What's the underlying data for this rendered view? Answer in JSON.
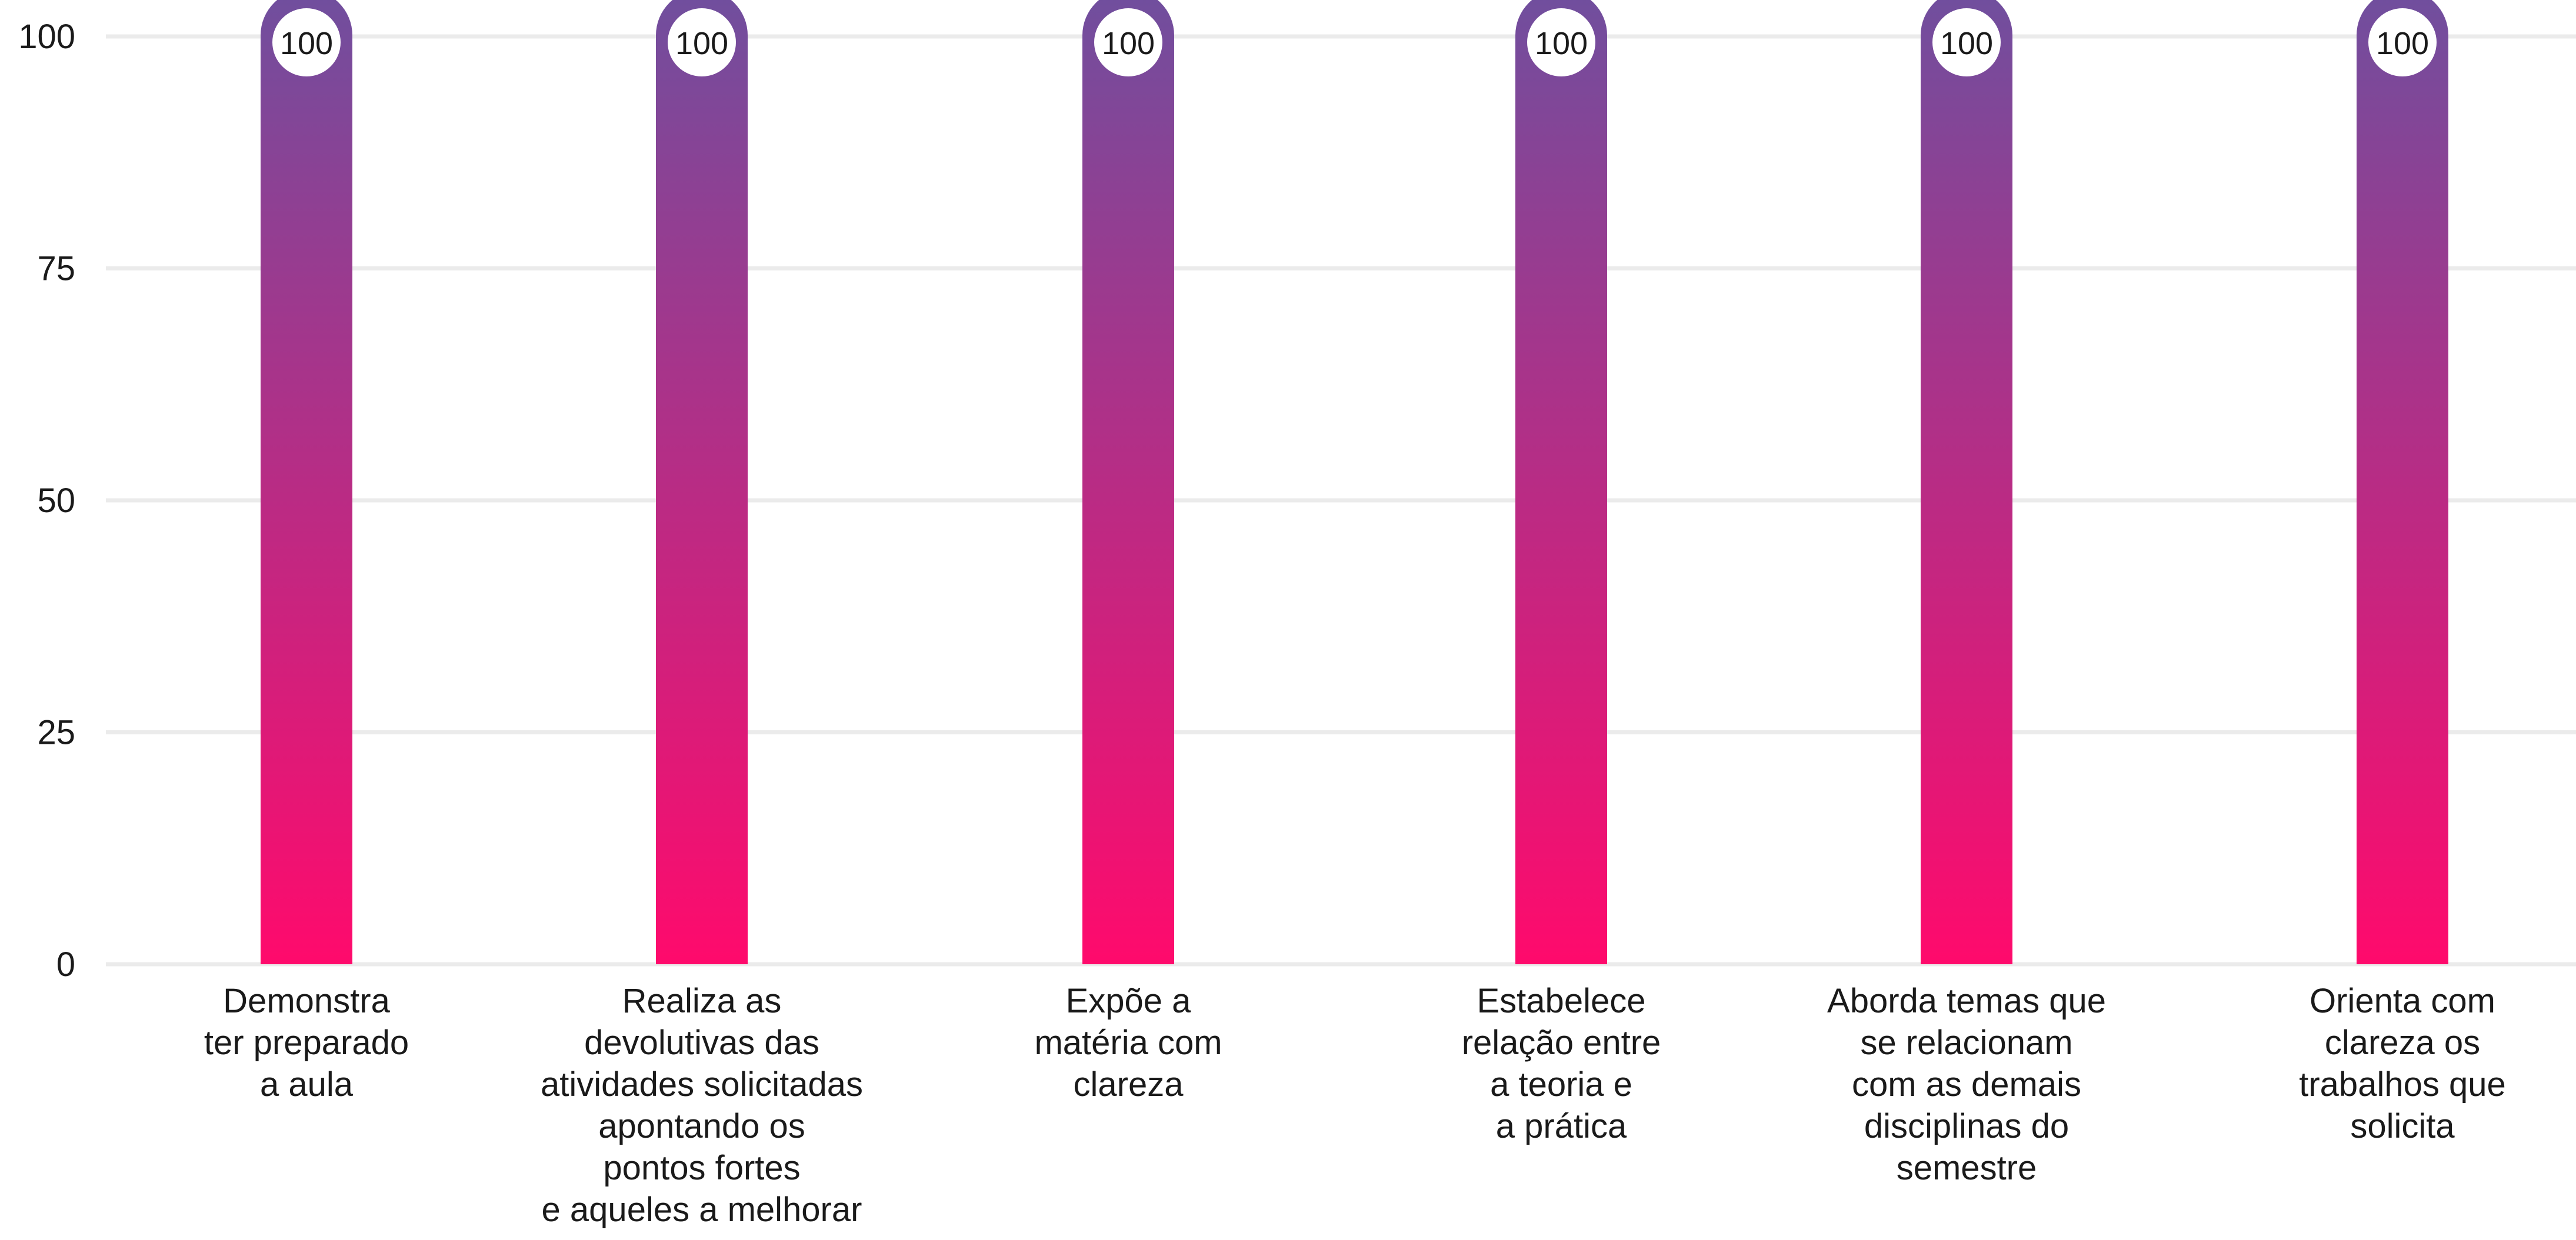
{
  "colors": {
    "bar_top": "#6f4f9e",
    "bar_bottom": "#ff0a6c",
    "grid": "#ebebeb",
    "text": "#1a1a1a",
    "label_bubble": "#ffffff"
  },
  "chart_data": {
    "type": "bar",
    "categories": [
      "Demonstra ter preparado a aula",
      "Realiza as devolutivas das atividades solicitadas apontando os pontos fortes e aqueles a melhorar",
      "Expõe a matéria com clareza",
      "Estabelece relação entre a teoria e a prática",
      "Aborda temas que se relacionam com as demais disciplinas do semestre",
      "Orienta com clareza os trabalhos que solicita"
    ],
    "category_label_lines": [
      [
        "Demonstra",
        "ter preparado",
        "a aula"
      ],
      [
        "Realiza as",
        "devolutivas das",
        "atividades solicitadas",
        "apontando os",
        "pontos fortes",
        "e aqueles a melhorar"
      ],
      [
        "Expõe a",
        "matéria com",
        "clareza"
      ],
      [
        "Estabelece",
        "relação entre",
        "a teoria e",
        "a prática"
      ],
      [
        "Aborda temas que",
        "se relacionam",
        "com as demais",
        "disciplinas do",
        "semestre"
      ],
      [
        "Orienta com",
        "clareza os",
        "trabalhos que",
        "solicita"
      ]
    ],
    "values": [
      100,
      100,
      100,
      100,
      100,
      100
    ],
    "data_labels": [
      "100",
      "100",
      "100",
      "100",
      "100",
      "100"
    ],
    "yticks": [
      "0",
      "25",
      "50",
      "75",
      "100"
    ],
    "ylim": [
      0,
      100
    ],
    "grid": true,
    "legend": "none",
    "title": "",
    "xlabel": "",
    "ylabel": ""
  }
}
